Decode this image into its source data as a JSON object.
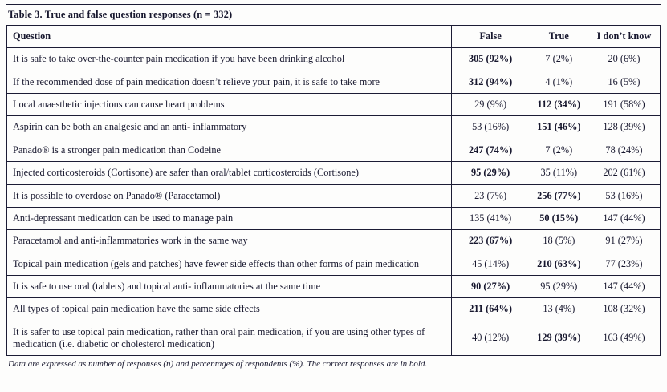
{
  "caption": "Table 3. True and false question responses (n = 332)",
  "colors": {
    "line": "#1c1c35",
    "text": "#17172e",
    "background": "#fdfdfc"
  },
  "table": {
    "headers": {
      "question": "Question",
      "false": "False",
      "true": "True",
      "idk": "I don’t know"
    },
    "rows": [
      {
        "question": "It is safe to take over-the-counter pain medication if you have been drinking alcohol",
        "false": "305 (92%)",
        "true": "7 (2%)",
        "idk": "20 (6%)",
        "correct": "false"
      },
      {
        "question": "If the recommended dose of pain medication doesn’t relieve your pain, it is safe to take more",
        "false": "312 (94%)",
        "true": "4 (1%)",
        "idk": "16 (5%)",
        "correct": "false"
      },
      {
        "question": "Local anaesthetic injections can cause heart problems",
        "false": "29 (9%)",
        "true": "112 (34%)",
        "idk": "191 (58%)",
        "correct": "true"
      },
      {
        "question": "Aspirin can be both an analgesic and an anti- inflammatory",
        "false": "53 (16%)",
        "true": "151 (46%)",
        "idk": "128 (39%)",
        "correct": "true"
      },
      {
        "question": "Panado® is a stronger pain medication than Codeine",
        "false": "247 (74%)",
        "true": "7 (2%)",
        "idk": "78 (24%)",
        "correct": "false"
      },
      {
        "question": "Injected corticosteroids (Cortisone) are safer than oral/tablet corticosteroids (Cortisone)",
        "false": "95 (29%)",
        "true": "35 (11%)",
        "idk": "202 (61%)",
        "correct": "false"
      },
      {
        "question": "It is possible to overdose on Panado® (Paracetamol)",
        "false": "23 (7%)",
        "true": "256 (77%)",
        "idk": "53 (16%)",
        "correct": "true"
      },
      {
        "question": "Anti-depressant medication can be used to manage pain",
        "false": "135 (41%)",
        "true": "50 (15%)",
        "idk": "147 (44%)",
        "correct": "true"
      },
      {
        "question": "Paracetamol and anti-inflammatories work in the same way",
        "false": "223 (67%)",
        "true": "18 (5%)",
        "idk": "91 (27%)",
        "correct": "false"
      },
      {
        "question": "Topical pain medication (gels and patches) have fewer side effects than other forms of pain medication",
        "false": "45 (14%)",
        "true": "210 (63%)",
        "idk": "77 (23%)",
        "correct": "true"
      },
      {
        "question": "It is safe to use oral (tablets) and topical anti- inflammatories at the same time",
        "false": "90 (27%)",
        "true": "95 (29%)",
        "idk": "147 (44%)",
        "correct": "false"
      },
      {
        "question": "All types of topical pain medication have the same side effects",
        "false": "211 (64%)",
        "true": "13 (4%)",
        "idk": "108 (32%)",
        "correct": "false"
      },
      {
        "question": "It is safer to use topical pain medication, rather than oral pain medication, if you are using other types of medication (i.e. diabetic or cholesterol medication)",
        "false": "40 (12%)",
        "true": "129 (39%)",
        "idk": "163 (49%)",
        "correct": "true"
      }
    ]
  },
  "footnote": "Data are expressed as number of responses (n) and percentages of respondents (%). The correct responses are in bold."
}
